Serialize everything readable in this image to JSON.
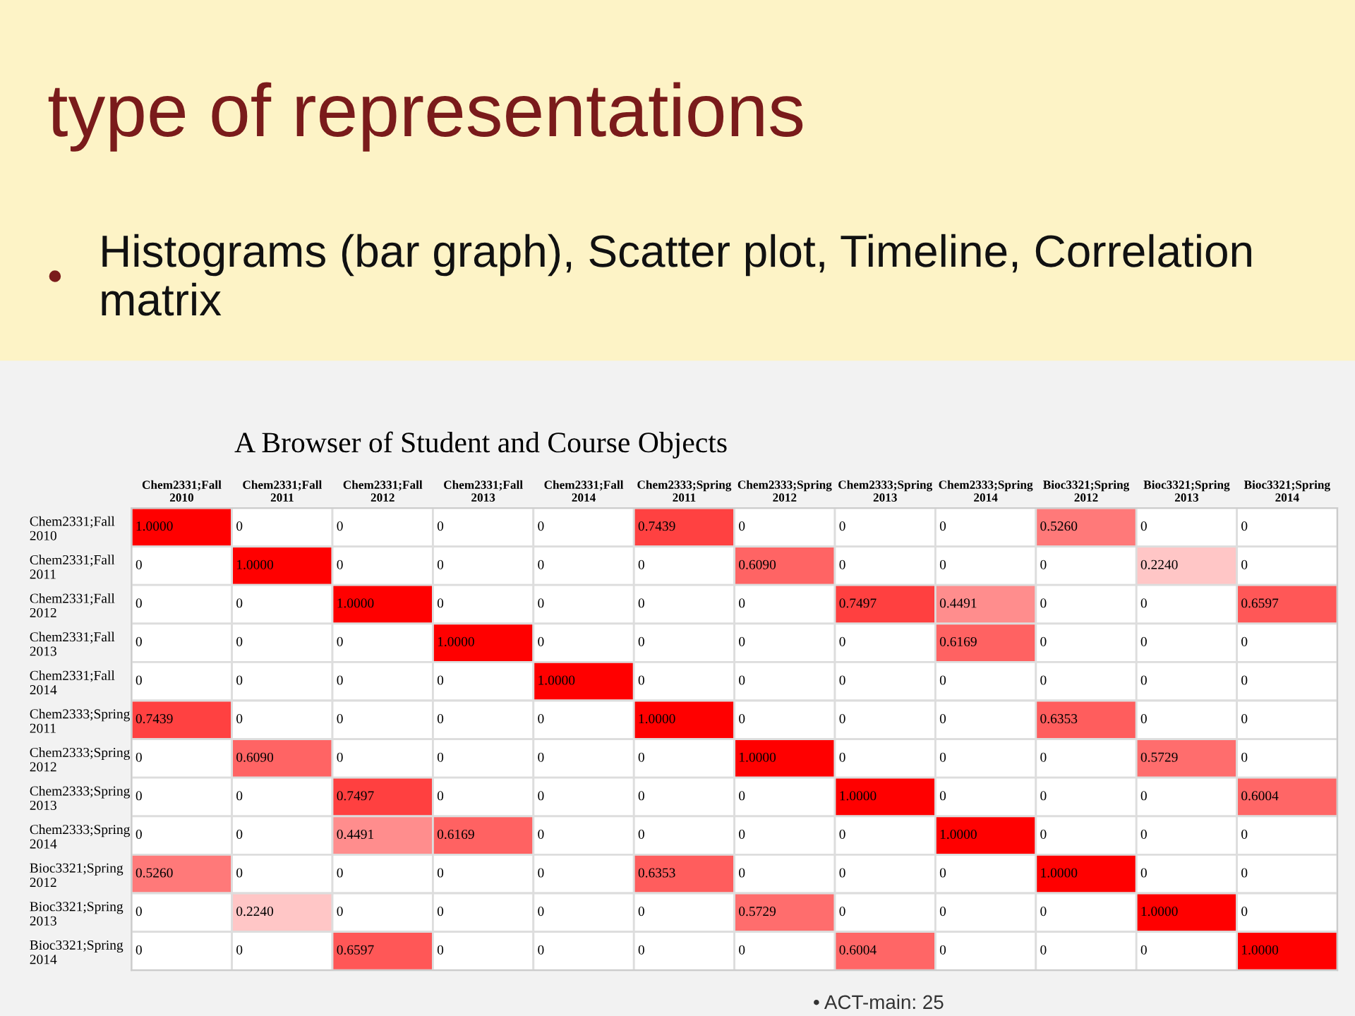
{
  "chart_data": {
    "type": "heatmap",
    "title": "type of representations",
    "subtitle": "A Browser of Student and Course Objects",
    "annotations": [
      "•",
      "Histograms (bar graph), Scatter plot, Timeline, Correlation matrix",
      "• ACT-main: 25"
    ],
    "color": "#ff0000",
    "categories": [
      "Chem2331;Fall 2010",
      "Chem2331;Fall 2011",
      "Chem2331;Fall 2012",
      "Chem2331;Fall 2013",
      "Chem2331;Fall 2014",
      "Chem2333;Spring 2011",
      "Chem2333;Spring 2012",
      "Chem2333;Spring 2013",
      "Chem2333;Spring 2014",
      "Bioc3321;Spring 2012",
      "Bioc3321;Spring 2013",
      "Bioc3321;Spring 2014"
    ],
    "y_categories": [
      "Chem2331;Fall 2010",
      "Chem2331;Fall 2011",
      "Chem2331;Fall 2012",
      "Chem2331;Fall 2013",
      "Chem2331;Fall 2014",
      "Chem2333;Spring 2011",
      "Chem2333;Spring 2012",
      "Chem2333;Spring 2013",
      "Chem2333;Spring 2014",
      "Bioc3321;Spring 2012",
      "Bioc3321;Spring 2013",
      "Bioc3321;Spring 2014"
    ],
    "cells": [
      [
        1,
        0,
        0,
        0,
        0,
        0.7439,
        0,
        0,
        0,
        0.526,
        0,
        0
      ],
      [
        0,
        1,
        0,
        0,
        0,
        0,
        0.609,
        0,
        0,
        0,
        0.224,
        0
      ],
      [
        0,
        0,
        1,
        0,
        0,
        0,
        0,
        0.7497,
        0.4491,
        0,
        0,
        0.6597
      ],
      [
        0,
        0,
        0,
        1,
        0,
        0,
        0,
        0,
        0.6169,
        0,
        0,
        0
      ],
      [
        0,
        0,
        0,
        0,
        1,
        0,
        0,
        0,
        0,
        0,
        0,
        0
      ],
      [
        0.7439,
        0,
        0,
        0,
        0,
        1,
        0,
        0,
        0,
        0.6353,
        0,
        0
      ],
      [
        0,
        0.609,
        0,
        0,
        0,
        0,
        1,
        0,
        0,
        0,
        0.5729,
        0
      ],
      [
        0,
        0,
        0.7497,
        0,
        0,
        0,
        0,
        1,
        0,
        0,
        0,
        0.6004
      ],
      [
        0,
        0,
        0.4491,
        0.6169,
        0,
        0,
        0,
        0,
        1,
        0,
        0,
        0
      ],
      [
        0.526,
        0,
        0,
        0,
        0,
        0.6353,
        0,
        0,
        0,
        1,
        0,
        0
      ],
      [
        0,
        0.224,
        0,
        0,
        0,
        0,
        0.5729,
        0,
        0,
        0,
        1,
        0
      ],
      [
        0,
        0,
        0.6597,
        0,
        0,
        0,
        0,
        0.6004,
        0,
        0,
        0,
        1
      ]
    ],
    "cell_labels": [
      [
        "1.0000",
        "0",
        "0",
        "0",
        "0",
        "0.7439",
        "0",
        "0",
        "0",
        "0.5260",
        "0",
        "0"
      ],
      [
        "0",
        "1.0000",
        "0",
        "0",
        "0",
        "0",
        "0.6090",
        "0",
        "0",
        "0",
        "0.2240",
        "0"
      ],
      [
        "0",
        "0",
        "1.0000",
        "0",
        "0",
        "0",
        "0",
        "0.7497",
        "0.4491",
        "0",
        "0",
        "0.6597"
      ],
      [
        "0",
        "0",
        "0",
        "1.0000",
        "0",
        "0",
        "0",
        "0",
        "0.6169",
        "0",
        "0",
        "0"
      ],
      [
        "0",
        "0",
        "0",
        "0",
        "1.0000",
        "0",
        "0",
        "0",
        "0",
        "0",
        "0",
        "0"
      ],
      [
        "0.7439",
        "0",
        "0",
        "0",
        "0",
        "1.0000",
        "0",
        "0",
        "0",
        "0.6353",
        "0",
        "0"
      ],
      [
        "0",
        "0.6090",
        "0",
        "0",
        "0",
        "0",
        "1.0000",
        "0",
        "0",
        "0",
        "0.5729",
        "0"
      ],
      [
        "0",
        "0",
        "0.7497",
        "0",
        "0",
        "0",
        "0",
        "1.0000",
        "0",
        "0",
        "0",
        "0.6004"
      ],
      [
        "0",
        "0",
        "0.4491",
        "0.6169",
        "0",
        "0",
        "0",
        "0",
        "1.0000",
        "0",
        "0",
        "0"
      ],
      [
        "0.5260",
        "0",
        "0",
        "0",
        "0",
        "0.6353",
        "0",
        "0",
        "0",
        "1.0000",
        "0",
        "0"
      ],
      [
        "0",
        "0.2240",
        "0",
        "0",
        "0",
        "0",
        "0.5729",
        "0",
        "0",
        "0",
        "1.0000",
        "0"
      ],
      [
        "0",
        "0",
        "0.6597",
        "0",
        "0",
        "0",
        "0",
        "0.6004",
        "0",
        "0",
        "0",
        "1.0000"
      ]
    ]
  }
}
